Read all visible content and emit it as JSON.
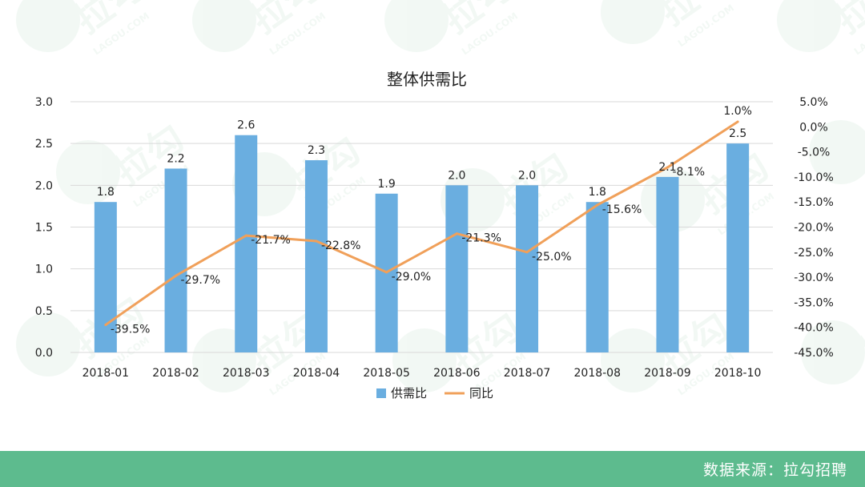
{
  "chart_data": {
    "type": "bar",
    "title": "整体供需比",
    "categories": [
      "2018-01",
      "2018-02",
      "2018-03",
      "2018-04",
      "2018-05",
      "2018-06",
      "2018-07",
      "2018-08",
      "2018-09",
      "2018-10"
    ],
    "series": [
      {
        "name": "供需比",
        "kind": "bar",
        "axis": "left",
        "color": "#6aaee0",
        "values": [
          1.8,
          2.2,
          2.6,
          2.3,
          1.9,
          2.0,
          2.0,
          1.8,
          2.1,
          2.5
        ],
        "labels": [
          "1.8",
          "2.2",
          "2.6",
          "2.3",
          "1.9",
          "2.0",
          "2.0",
          "1.8",
          "2.1",
          "2.5"
        ]
      },
      {
        "name": "同比",
        "kind": "line",
        "axis": "right",
        "color": "#f0a05a",
        "values": [
          -39.5,
          -29.7,
          -21.7,
          -22.8,
          -29.0,
          -21.3,
          -25.0,
          -15.6,
          -8.1,
          1.0
        ],
        "labels": [
          "-39.5%",
          "-29.7%",
          "-21.7%",
          "-22.8%",
          "-29.0%",
          "-21.3%",
          "-25.0%",
          "-15.6%",
          "-8.1%",
          "1.0%"
        ]
      }
    ],
    "y_left": {
      "range": [
        0,
        3
      ],
      "ticks": [
        0,
        0.5,
        1,
        1.5,
        2,
        2.5,
        3
      ],
      "tick_labels": [
        "0.0",
        "0.5",
        "1.0",
        "1.5",
        "2.0",
        "2.5",
        "3.0"
      ]
    },
    "y_right": {
      "range": [
        -45,
        5
      ],
      "ticks": [
        -45,
        -40,
        -35,
        -30,
        -25,
        -20,
        -15,
        -10,
        -5,
        0,
        5
      ],
      "tick_labels": [
        "-45.0%",
        "-40.0%",
        "-35.0%",
        "-30.0%",
        "-25.0%",
        "-20.0%",
        "-15.0%",
        "-10.0%",
        "-5.0%",
        "0.0%",
        "5.0%"
      ]
    },
    "grid": true,
    "legend_position": "bottom",
    "legend": [
      "供需比",
      "同比"
    ]
  },
  "watermark": {
    "brand": "拉勾",
    "brand_latin": "LAGOU.COM"
  },
  "footer": {
    "text": "数据来源：拉勾招聘"
  },
  "colors": {
    "footer_bg": "#5dbb8e",
    "grid": "#d9d9d9",
    "text": "#222222"
  }
}
